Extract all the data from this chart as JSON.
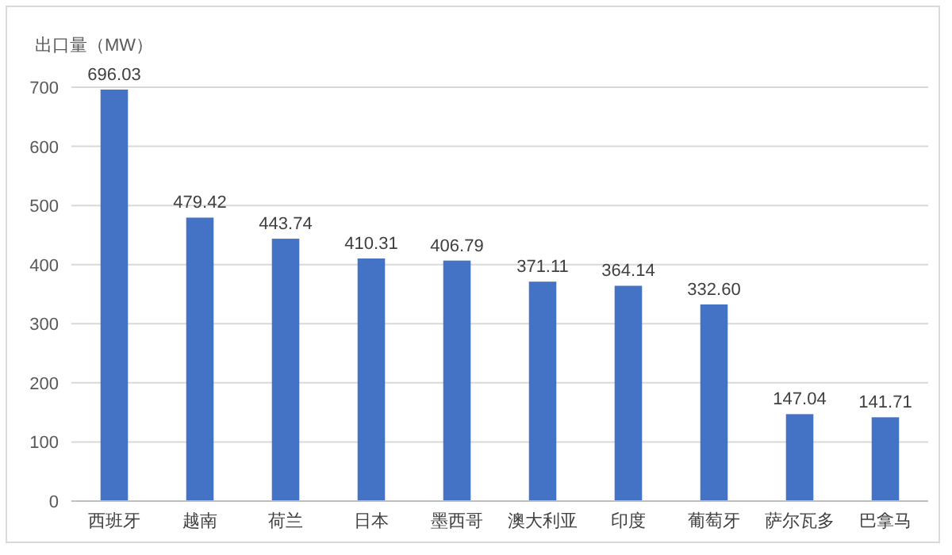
{
  "chart_data": {
    "type": "bar",
    "ylabel": "出口量（MW）",
    "categories": [
      "西班牙",
      "越南",
      "荷兰",
      "日本",
      "墨西哥",
      "澳大利亚",
      "印度",
      "葡萄牙",
      "萨尔瓦多",
      "巴拿马"
    ],
    "values": [
      696.03,
      479.42,
      443.74,
      410.31,
      406.79,
      371.11,
      364.14,
      332.6,
      147.04,
      141.71
    ],
    "value_labels": [
      "696.03",
      "479.42",
      "443.74",
      "410.31",
      "406.79",
      "371.11",
      "364.14",
      "332.60",
      "147.04",
      "141.71"
    ],
    "color": "#4472c4",
    "ylim": [
      0,
      700
    ],
    "yticks": [
      0,
      100,
      200,
      300,
      400,
      500,
      600,
      700
    ],
    "grid": "y"
  }
}
